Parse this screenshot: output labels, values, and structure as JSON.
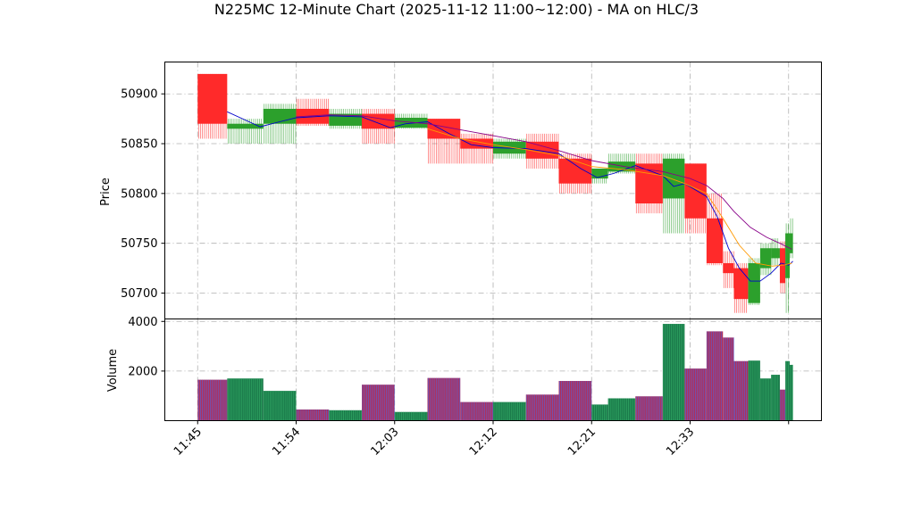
{
  "chart_data": {
    "type": "candlestick",
    "title": "N225MC 12-Minute Chart (2025-11-12 11:00~12:00) - MA on HLC/3",
    "price_panel": {
      "ylabel": "Price",
      "ylim": [
        50674,
        50932
      ],
      "yticks": [
        50700,
        50750,
        50800,
        50850,
        50900
      ],
      "grid": true
    },
    "volume_panel": {
      "ylabel": "Volume",
      "ylim": [
        0,
        4100
      ],
      "yticks": [
        2000,
        4000
      ],
      "grid": true
    },
    "x_ticks": [
      {
        "label": "11:45",
        "t": 0
      },
      {
        "label": "11:54",
        "t": 9
      },
      {
        "label": "12:03",
        "t": 18
      },
      {
        "label": "12:12",
        "t": 27
      },
      {
        "label": "12:21",
        "t": 36
      },
      {
        "label": "12:33",
        "t": 45
      },
      {
        "label": "",
        "t": 54
      }
    ],
    "xlim": [
      -3,
      57
    ],
    "up_color": "#2ca02c",
    "down_color": "#ff2a2a",
    "volume_up_color": "#1a7a4a",
    "volume_down_color": "#b0305a",
    "candles": [
      {
        "t0": 0,
        "t1": 2.7,
        "o": 50920,
        "h": 50920,
        "l": 50855,
        "c": 50870,
        "v": 1650
      },
      {
        "t0": 2.7,
        "t1": 6,
        "o": 50865,
        "h": 50875,
        "l": 50850,
        "c": 50870,
        "v": 1700
      },
      {
        "t0": 6,
        "t1": 9,
        "o": 50870,
        "h": 50890,
        "l": 50850,
        "c": 50885,
        "v": 1200
      },
      {
        "t0": 9,
        "t1": 12,
        "o": 50885,
        "h": 50895,
        "l": 50868,
        "c": 50870,
        "v": 450
      },
      {
        "t0": 12,
        "t1": 15,
        "o": 50868,
        "h": 50885,
        "l": 50865,
        "c": 50880,
        "v": 420
      },
      {
        "t0": 15,
        "t1": 18,
        "o": 50880,
        "h": 50885,
        "l": 50850,
        "c": 50865,
        "v": 1450
      },
      {
        "t0": 18,
        "t1": 21,
        "o": 50866,
        "h": 50880,
        "l": 50865,
        "c": 50876,
        "v": 350
      },
      {
        "t0": 21,
        "t1": 24,
        "o": 50875,
        "h": 50875,
        "l": 50830,
        "c": 50855,
        "v": 1720
      },
      {
        "t0": 24,
        "t1": 27,
        "o": 50855,
        "h": 50860,
        "l": 50830,
        "c": 50845,
        "v": 750
      },
      {
        "t0": 27,
        "t1": 30,
        "o": 50840,
        "h": 50855,
        "l": 50835,
        "c": 50852,
        "v": 750
      },
      {
        "t0": 30,
        "t1": 33,
        "o": 50852,
        "h": 50860,
        "l": 50825,
        "c": 50835,
        "v": 1050
      },
      {
        "t0": 33,
        "t1": 36,
        "o": 50835,
        "h": 50840,
        "l": 50800,
        "c": 50810,
        "v": 1600
      },
      {
        "t0": 36,
        "t1": 37.5,
        "o": 50815,
        "h": 50825,
        "l": 50810,
        "c": 50825,
        "v": 650
      },
      {
        "t0": 37.5,
        "t1": 40,
        "o": 50822,
        "h": 50840,
        "l": 50820,
        "c": 50832,
        "v": 900
      },
      {
        "t0": 40,
        "t1": 42.5,
        "o": 50830,
        "h": 50840,
        "l": 50780,
        "c": 50790,
        "v": 980
      },
      {
        "t0": 42.5,
        "t1": 44.5,
        "o": 50795,
        "h": 50840,
        "l": 50760,
        "c": 50835,
        "v": 3900
      },
      {
        "t0": 44.5,
        "t1": 46.5,
        "o": 50830,
        "h": 50830,
        "l": 50760,
        "c": 50775,
        "v": 2100
      },
      {
        "t0": 46.5,
        "t1": 48,
        "o": 50775,
        "h": 50800,
        "l": 50728,
        "c": 50730,
        "v": 3600
      },
      {
        "t0": 48,
        "t1": 49,
        "o": 50730,
        "h": 50742,
        "l": 50705,
        "c": 50720,
        "v": 3350
      },
      {
        "t0": 49,
        "t1": 50.3,
        "o": 50725,
        "h": 50730,
        "l": 50680,
        "c": 50694,
        "v": 2400
      },
      {
        "t0": 50.3,
        "t1": 51.4,
        "o": 50690,
        "h": 50735,
        "l": 50688,
        "c": 50730,
        "v": 2420
      },
      {
        "t0": 51.4,
        "t1": 52.4,
        "o": 50725,
        "h": 50750,
        "l": 50718,
        "c": 50745,
        "v": 1700
      },
      {
        "t0": 52.4,
        "t1": 53.2,
        "o": 50735,
        "h": 50755,
        "l": 50728,
        "c": 50745,
        "v": 1850
      },
      {
        "t0": 53.2,
        "t1": 53.7,
        "o": 50745,
        "h": 50752,
        "l": 50700,
        "c": 50710,
        "v": 1250
      },
      {
        "t0": 53.7,
        "t1": 54.1,
        "o": 50715,
        "h": 50770,
        "l": 50680,
        "c": 50760,
        "v": 2400
      },
      {
        "t0": 54.1,
        "t1": 54.4,
        "o": 50740,
        "h": 50775,
        "l": 50735,
        "c": 50760,
        "v": 2250
      }
    ],
    "ma_series": [
      {
        "color": "#0000cc",
        "points": [
          [
            2.7,
            50882
          ],
          [
            4.5,
            50873
          ],
          [
            5.7,
            50867
          ],
          [
            7.5,
            50872
          ],
          [
            9,
            50876
          ],
          [
            12,
            50878
          ],
          [
            15,
            50877
          ],
          [
            17.6,
            50866
          ],
          [
            19,
            50870
          ],
          [
            21,
            50872
          ],
          [
            23,
            50860
          ],
          [
            25,
            50849
          ],
          [
            27,
            50846
          ],
          [
            30,
            50845
          ],
          [
            33,
            50840
          ],
          [
            35,
            50825
          ],
          [
            36.5,
            50816
          ],
          [
            38,
            50820
          ],
          [
            40,
            50828
          ],
          [
            41.5,
            50822
          ],
          [
            42.5,
            50818
          ],
          [
            43.5,
            50807
          ],
          [
            44.5,
            50810
          ],
          [
            46.5,
            50797
          ],
          [
            47.5,
            50776
          ],
          [
            48.5,
            50745
          ],
          [
            49.5,
            50725
          ],
          [
            50.5,
            50712
          ],
          [
            51.4,
            50712
          ],
          [
            52.4,
            50720
          ],
          [
            53.3,
            50730
          ],
          [
            54,
            50728
          ],
          [
            54.4,
            50732
          ]
        ]
      },
      {
        "color": "#ff9900",
        "points": [
          [
            21,
            50865
          ],
          [
            24,
            50855
          ],
          [
            27,
            50849
          ],
          [
            30,
            50844
          ],
          [
            33,
            50838
          ],
          [
            36,
            50827
          ],
          [
            39,
            50824
          ],
          [
            42.5,
            50818
          ],
          [
            44.5,
            50810
          ],
          [
            46.5,
            50800
          ],
          [
            48,
            50775
          ],
          [
            49.5,
            50748
          ],
          [
            51,
            50730
          ],
          [
            52.5,
            50727
          ],
          [
            53.5,
            50728
          ],
          [
            54.3,
            50730
          ]
        ]
      },
      {
        "color": "#880088",
        "points": [
          [
            9,
            50877
          ],
          [
            12,
            50879
          ],
          [
            15,
            50878
          ],
          [
            18,
            50873
          ],
          [
            21,
            50870
          ],
          [
            24,
            50864
          ],
          [
            27,
            50858
          ],
          [
            30,
            50852
          ],
          [
            33,
            50843
          ],
          [
            36,
            50833
          ],
          [
            39,
            50827
          ],
          [
            42.5,
            50822
          ],
          [
            45,
            50815
          ],
          [
            46.5,
            50808
          ],
          [
            48,
            50795
          ],
          [
            49,
            50782
          ],
          [
            50.5,
            50766
          ],
          [
            52,
            50756
          ],
          [
            53.2,
            50750
          ],
          [
            54.3,
            50744
          ]
        ]
      }
    ]
  }
}
